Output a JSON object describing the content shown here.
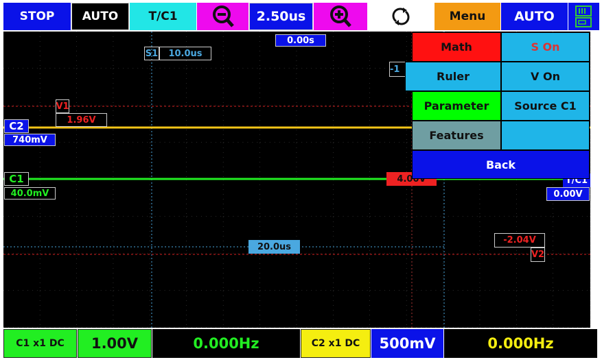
{
  "toolbar": {
    "stop": "STOP",
    "trigger_mode": "AUTO",
    "trigger_source": "T/C1",
    "timebase": "2.50us",
    "menu": "Menu",
    "auto": "AUTO"
  },
  "icons": {
    "zoom_out": "zoom-out-icon",
    "zoom_in": "zoom-in-icon",
    "refresh": "refresh-icon",
    "battery": "battery-icon"
  },
  "screen": {
    "time_offset": "0.00s",
    "s1_label": "S1",
    "s1_value": "10.0us",
    "v1_label": "V1",
    "v1_value": "1.96V",
    "v2_label": "V2",
    "v2_value": "-2.04V",
    "delta_t": "20.0us",
    "trigger_level": "4.00V",
    "trigger_partial": "-1",
    "trigger_ch": "T/C1",
    "trigger_value": "0.00V",
    "c2_label": "C2",
    "c2_offset": "740mV",
    "c1_label": "C1",
    "c1_offset": "40.0mV"
  },
  "menu": {
    "math": "Math",
    "s_on": "S On",
    "ruler": "Ruler",
    "v_on": "V On",
    "parameter": "Parameter",
    "source": "Source C1",
    "features": "Features",
    "empty": "",
    "back": "Back"
  },
  "status": {
    "c1_coupling": "C1 x1 DC",
    "c1_scale": "1.00V",
    "c1_freq": "0.000Hz",
    "c2_coupling": "C2 x1 DC",
    "c2_scale": "500mV",
    "c2_freq": "0.000Hz"
  },
  "colors": {
    "c1": "#22ee22",
    "c2": "#f5c518",
    "cursor_v": "#dd2222",
    "cursor_t": "#4aa8e0",
    "menu_blue": "#0a12e8"
  }
}
